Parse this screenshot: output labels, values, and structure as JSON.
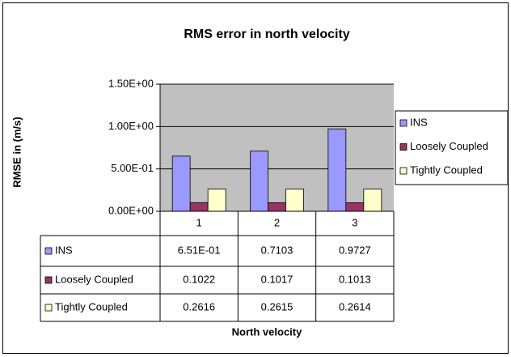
{
  "chart_data": {
    "type": "bar",
    "title": "RMS error in north velocity",
    "y_label": "RMSE in (m/s)",
    "x_label": "North velocity",
    "categories": [
      "1",
      "2",
      "3"
    ],
    "series": [
      {
        "name": "INS",
        "color": "#9999ff",
        "values": [
          0.651,
          0.7103,
          0.9727
        ],
        "value_labels": [
          "6.51E-01",
          "0.7103",
          "0.9727"
        ]
      },
      {
        "name": "Loosely Coupled",
        "color": "#993366",
        "values": [
          0.1022,
          0.1017,
          0.1013
        ],
        "value_labels": [
          "0.1022",
          "0.1017",
          "0.1013"
        ]
      },
      {
        "name": "Tightly Coupled",
        "color": "#ffffcc",
        "values": [
          0.2616,
          0.2615,
          0.2614
        ],
        "value_labels": [
          "0.2616",
          "0.2615",
          "0.2614"
        ]
      }
    ],
    "ylim": [
      0,
      1.5
    ],
    "yticks": [
      {
        "value": 0,
        "label": "0.00E+00"
      },
      {
        "value": 0.5,
        "label": "5.00E-01"
      },
      {
        "value": 1,
        "label": "1.00E+00"
      },
      {
        "value": 1.5,
        "label": "1.50E+00"
      }
    ],
    "grid": true,
    "plot_background": "#c0c0c0",
    "legend": "right"
  }
}
